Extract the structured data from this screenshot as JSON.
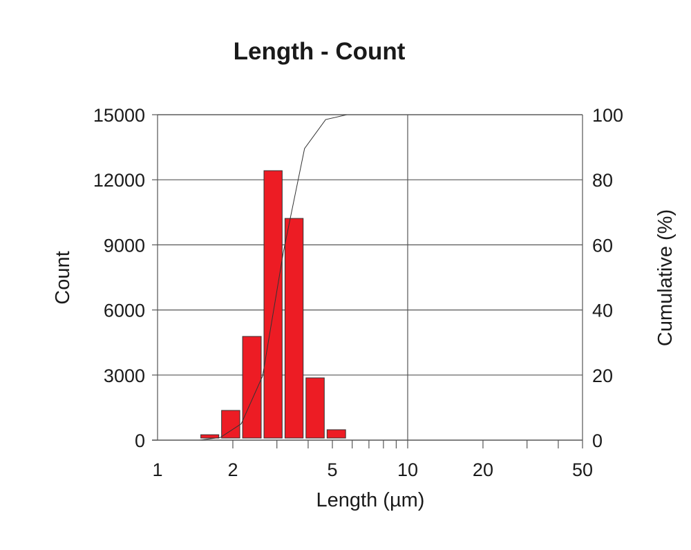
{
  "chart_data": {
    "type": "bar",
    "title": "Length - Count",
    "xlabel": "Length (µm)",
    "ylabel": "Count",
    "y2label": "Cumulative (%)",
    "xscale": "log",
    "xlim": [
      1,
      50
    ],
    "ylim": [
      0,
      15000
    ],
    "y2lim": [
      0,
      100
    ],
    "x_tick_labels": [
      "1",
      "2",
      "5",
      "10",
      "20",
      "50"
    ],
    "x_ticks": [
      1,
      2,
      5,
      10,
      20,
      50
    ],
    "x_minor_ticks": [
      2,
      3,
      4,
      5,
      6,
      7,
      8,
      9,
      10,
      20,
      30,
      40,
      50
    ],
    "y_ticks": [
      0,
      3000,
      6000,
      9000,
      12000,
      15000
    ],
    "y_tick_labels": [
      "0",
      "3000",
      "6000",
      "9000",
      "12000",
      "15000"
    ],
    "y2_ticks": [
      0,
      20,
      40,
      60,
      80,
      100
    ],
    "y2_tick_labels": [
      "0",
      "20",
      "40",
      "60",
      "80",
      "100"
    ],
    "grid": "horizontal lines at y ticks, vertical line at x=10",
    "bars": {
      "bin_edges": [
        1.47,
        1.78,
        2.16,
        2.63,
        3.19,
        3.87,
        4.7,
        5.72
      ],
      "values": [
        250,
        1370,
        4780,
        12420,
        10220,
        2870,
        480
      ]
    },
    "cumulative": {
      "x": [
        1.47,
        1.78,
        2.16,
        2.63,
        3.19,
        3.87,
        4.7,
        5.72,
        10,
        50
      ],
      "y": [
        0,
        0.8,
        5.0,
        19.7,
        58.1,
        89.6,
        98.5,
        100,
        100,
        100
      ]
    },
    "colors": {
      "bar": "#ed1c24",
      "bar_edge": "#333333",
      "line": "#333333",
      "grid": "#555555"
    }
  }
}
